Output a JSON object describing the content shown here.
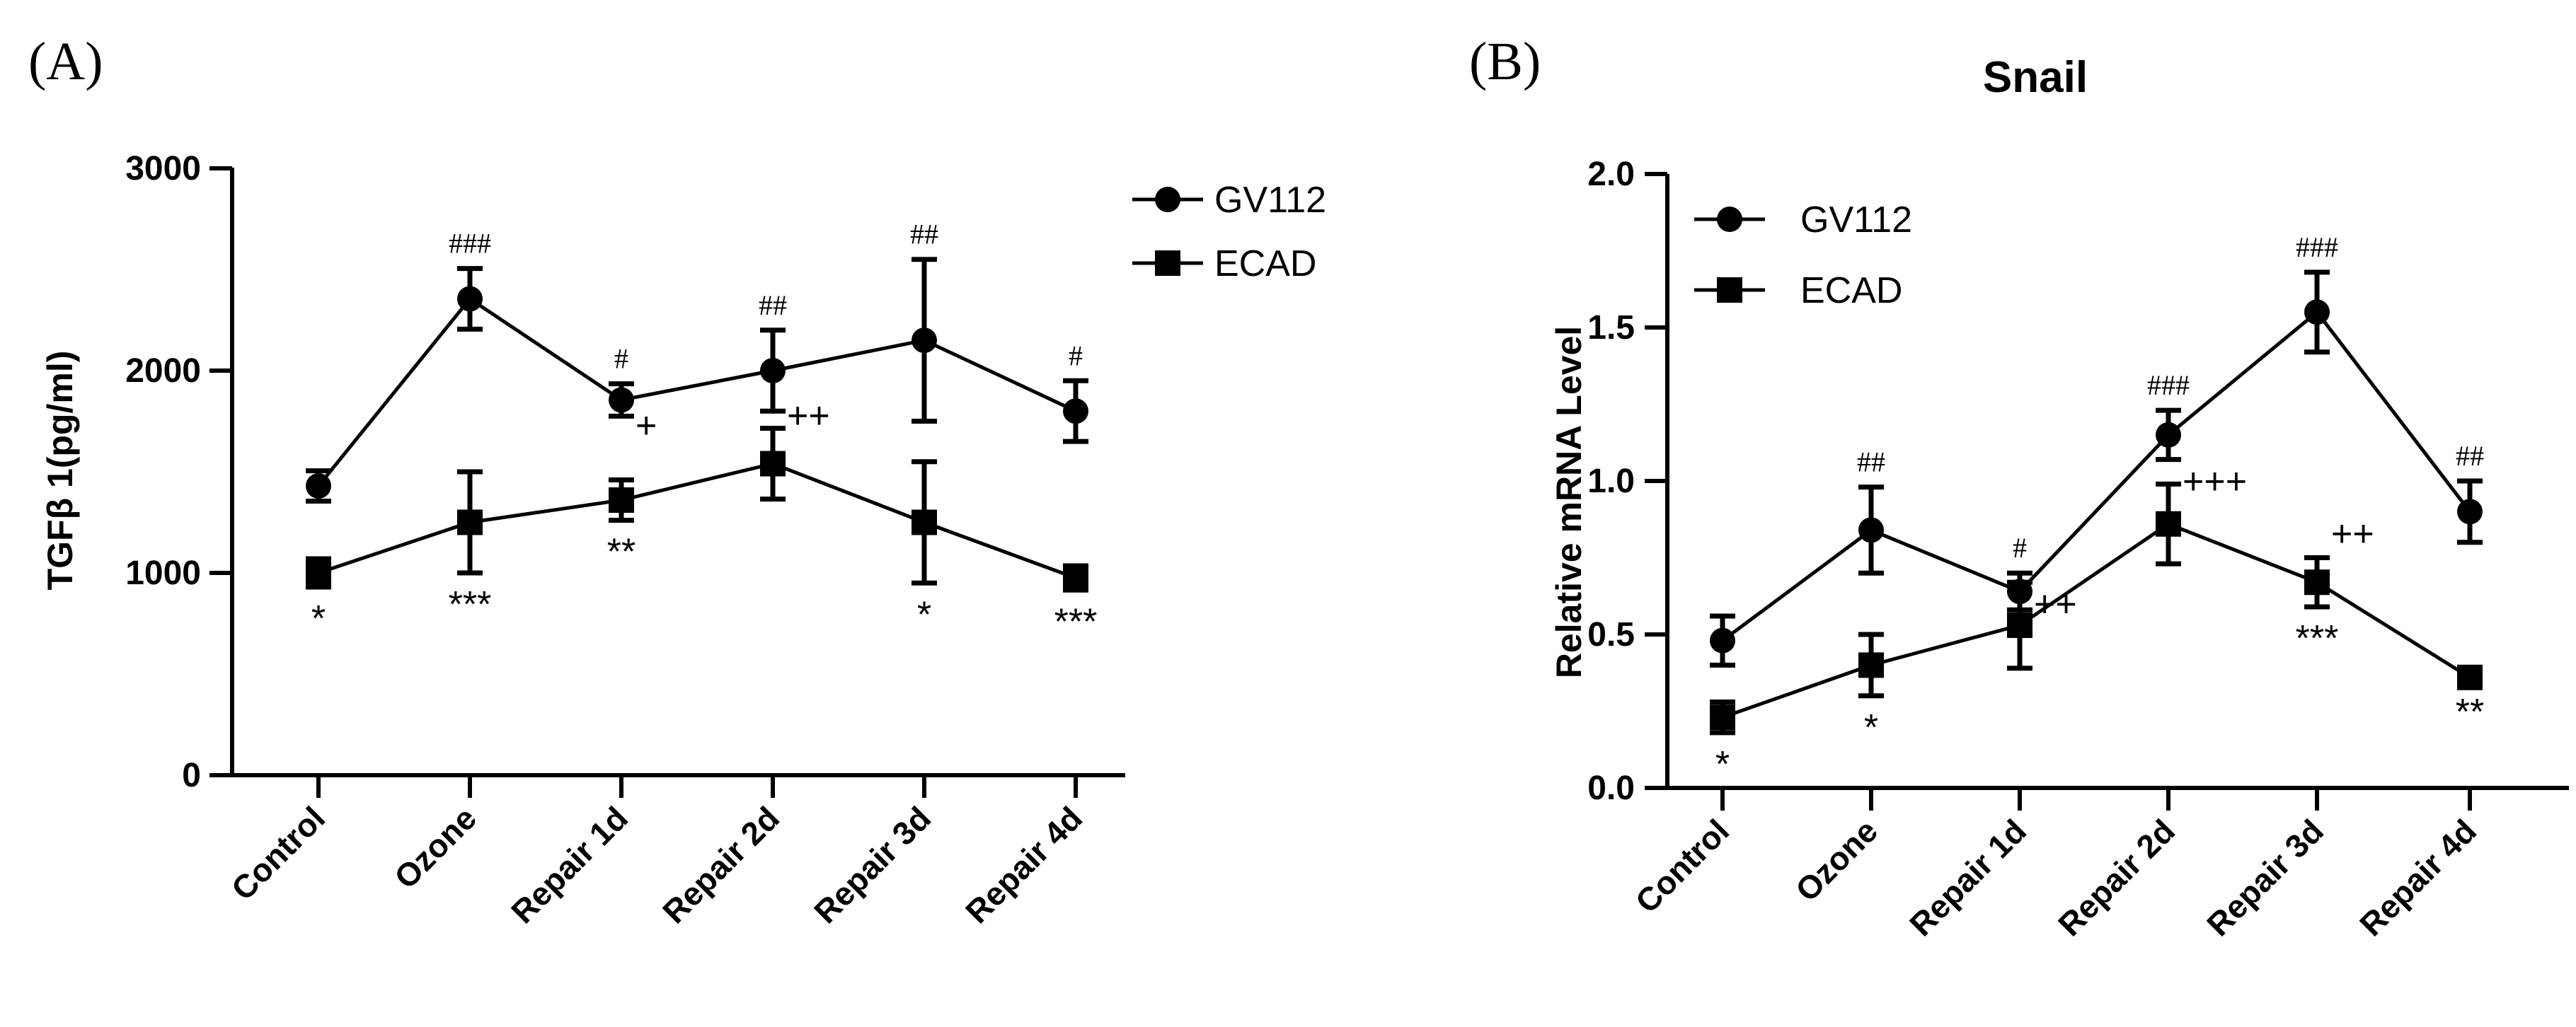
{
  "chart_data": [
    {
      "panel_label": "(A)",
      "type": "line",
      "title": "",
      "xlabel": "",
      "ylabel": "TGFβ 1(pg/ml)",
      "ylim": [
        0,
        3000
      ],
      "yticks": [
        "0",
        "1000",
        "2000",
        "3000"
      ],
      "categories": [
        "Control",
        "Ozone",
        "Repair 1d",
        "Repair 2d",
        "Repair 3d",
        "Repair 4d"
      ],
      "legend": {
        "position": "top-right"
      },
      "series": [
        {
          "name": "GV112",
          "marker": "circle",
          "values": [
            1430,
            2355,
            1855,
            2000,
            2150,
            1800
          ],
          "errors": [
            75,
            150,
            80,
            200,
            400,
            150
          ],
          "annotations": [
            "",
            "###",
            "#",
            "##",
            "##",
            "#"
          ]
        },
        {
          "name": "ECAD",
          "marker": "square",
          "values": [
            1000,
            1250,
            1360,
            1540,
            1250,
            975
          ],
          "errors": [
            70,
            250,
            100,
            175,
            300,
            60
          ],
          "annotations": [
            "*",
            "***",
            "**",
            "",
            "*",
            "***"
          ]
        }
      ],
      "plus_annotations": [
        {
          "category": "Repair 1d",
          "text": "+",
          "value": 1730
        },
        {
          "category": "Repair 2d",
          "text": "++",
          "value": 1780
        }
      ]
    },
    {
      "panel_label": "(B)",
      "type": "line",
      "title": "Snail",
      "xlabel": "",
      "ylabel": "Relative mRNA Level",
      "ylim": [
        0,
        2.0
      ],
      "yticks": [
        "0.0",
        "0.5",
        "1.0",
        "1.5",
        "2.0"
      ],
      "categories": [
        "Control",
        "Ozone",
        "Repair 1d",
        "Repair 2d",
        "Repair 3d",
        "Repair 4d"
      ],
      "legend": {
        "position": "top-left"
      },
      "series": [
        {
          "name": "GV112",
          "marker": "circle",
          "values": [
            0.48,
            0.84,
            0.64,
            1.15,
            1.55,
            0.9
          ],
          "errors": [
            0.08,
            0.14,
            0.06,
            0.08,
            0.13,
            0.1
          ],
          "annotations": [
            "",
            "##",
            "#",
            "###",
            "###",
            "##"
          ]
        },
        {
          "name": "ECAD",
          "marker": "square",
          "values": [
            0.23,
            0.4,
            0.53,
            0.86,
            0.67,
            0.36
          ],
          "errors": [
            0.05,
            0.1,
            0.14,
            0.13,
            0.08,
            0.01
          ],
          "annotations": [
            "*",
            "*",
            "",
            "",
            "***",
            "**"
          ]
        }
      ],
      "plus_annotations": [
        {
          "category": "Repair 1d",
          "text": "++",
          "value": 0.6
        },
        {
          "category": "Repair 2d",
          "text": "+++",
          "value": 1.0
        },
        {
          "category": "Repair 3d",
          "text": "++",
          "value": 0.83
        }
      ]
    }
  ]
}
